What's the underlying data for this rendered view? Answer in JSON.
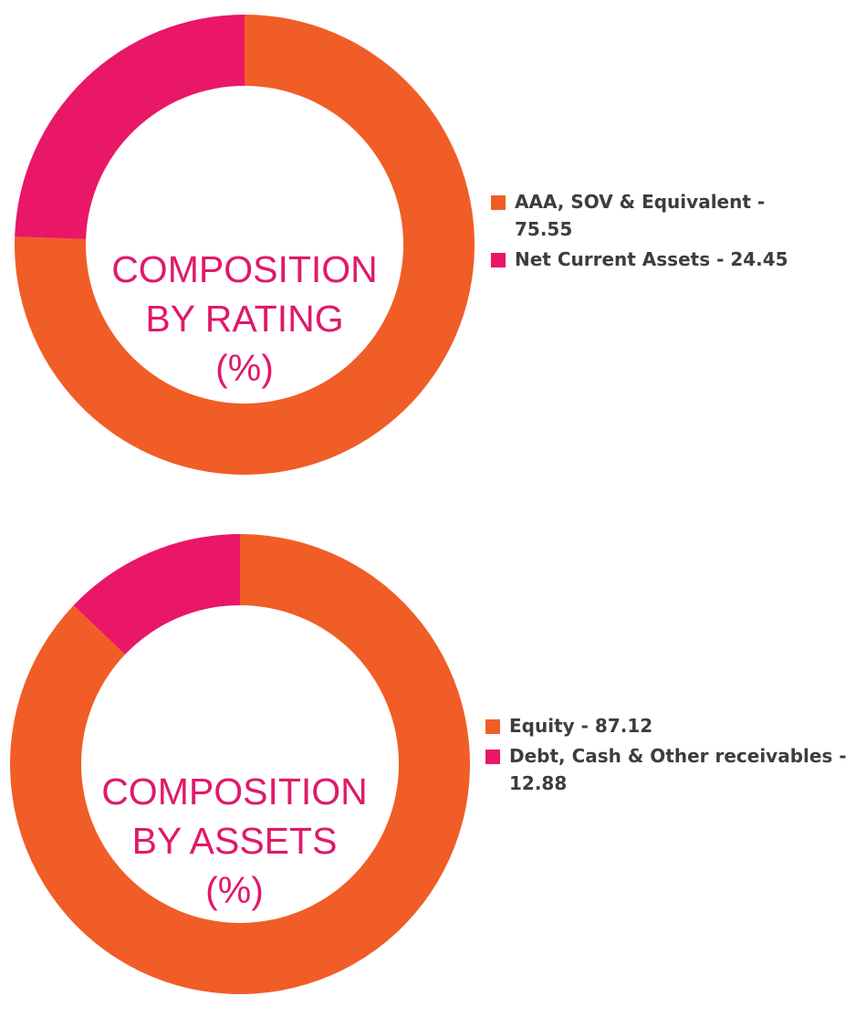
{
  "chart_data": [
    {
      "type": "pie",
      "title_lines": [
        "COMPOSITION",
        "BY RATING",
        "(%)"
      ],
      "categories": [
        "AAA, SOV & Equivalent",
        "Net Current Assets"
      ],
      "values": [
        75.55,
        24.45
      ],
      "legend_labels": [
        "AAA, SOV & Equivalent - 75.55",
        "Net Current Assets - 24.45"
      ],
      "colors": [
        "#f15d27",
        "#ea1667"
      ],
      "legend": "right"
    },
    {
      "type": "pie",
      "title_lines": [
        "COMPOSITION",
        "BY ASSETS",
        "(%)"
      ],
      "categories": [
        "Equity",
        "Debt, Cash & Other receivables"
      ],
      "values": [
        87.12,
        12.88
      ],
      "legend_labels": [
        "Equity - 87.12",
        "Debt, Cash & Other receivables - 12.88"
      ],
      "colors": [
        "#f15d27",
        "#ea1667"
      ],
      "legend": "right"
    }
  ]
}
